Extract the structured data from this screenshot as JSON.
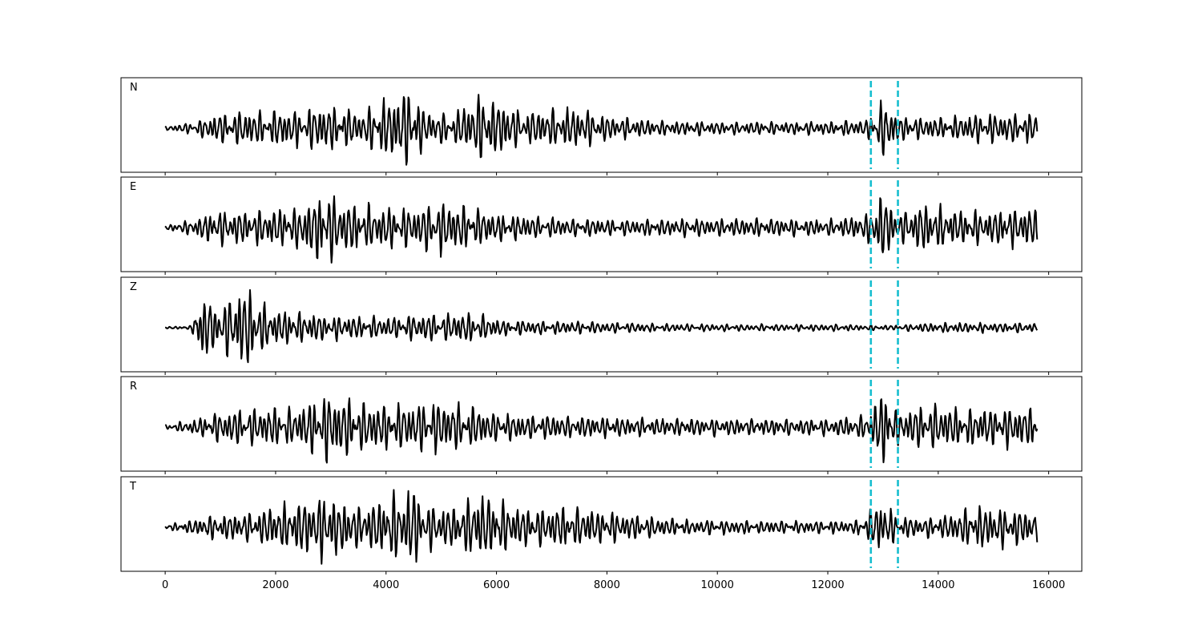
{
  "chart_data": {
    "type": "line",
    "title": "",
    "xlabel": "",
    "ylabel": "",
    "xlim": [
      -800,
      16600
    ],
    "xticks": [
      0,
      2000,
      4000,
      6000,
      8000,
      10000,
      12000,
      14000,
      16000
    ],
    "xtick_labels": [
      "0",
      "2000",
      "4000",
      "6000",
      "8000",
      "10000",
      "12000",
      "14000",
      "16000"
    ],
    "sample_range": [
      0,
      15800
    ],
    "markers": {
      "color": "#17becf",
      "style": "dashed",
      "x": [
        12780,
        13270
      ]
    },
    "trace_color": "#000000",
    "grid": false,
    "legend": "none",
    "panels": [
      {
        "label": "N",
        "envelope": [
          [
            0,
            0.05
          ],
          [
            500,
            0.15
          ],
          [
            900,
            0.35
          ],
          [
            1500,
            0.42
          ],
          [
            2400,
            0.45
          ],
          [
            2900,
            0.6
          ],
          [
            3500,
            0.42
          ],
          [
            4500,
            1.0
          ],
          [
            4700,
            0.45
          ],
          [
            5200,
            0.35
          ],
          [
            5700,
            0.85
          ],
          [
            6500,
            0.4
          ],
          [
            7400,
            0.5
          ],
          [
            8000,
            0.3
          ],
          [
            9000,
            0.18
          ],
          [
            10500,
            0.15
          ],
          [
            12000,
            0.16
          ],
          [
            12700,
            0.22
          ],
          [
            13000,
            0.7
          ],
          [
            13300,
            0.3
          ],
          [
            14000,
            0.25
          ],
          [
            14800,
            0.35
          ],
          [
            15800,
            0.35
          ]
        ],
        "seed": 11,
        "period": 90
      },
      {
        "label": "E",
        "envelope": [
          [
            0,
            0.05
          ],
          [
            500,
            0.2
          ],
          [
            900,
            0.4
          ],
          [
            1500,
            0.4
          ],
          [
            2400,
            0.5
          ],
          [
            2900,
            0.9
          ],
          [
            3500,
            0.55
          ],
          [
            4500,
            0.5
          ],
          [
            5000,
            0.65
          ],
          [
            6000,
            0.35
          ],
          [
            6800,
            0.25
          ],
          [
            8000,
            0.2
          ],
          [
            10000,
            0.22
          ],
          [
            12000,
            0.2
          ],
          [
            12700,
            0.3
          ],
          [
            12950,
            0.85
          ],
          [
            13300,
            0.35
          ],
          [
            13700,
            0.6
          ],
          [
            14500,
            0.4
          ],
          [
            15800,
            0.5
          ]
        ],
        "seed": 23,
        "period": 90
      },
      {
        "label": "Z",
        "envelope": [
          [
            0,
            0.02
          ],
          [
            480,
            0.05
          ],
          [
            620,
            0.9
          ],
          [
            900,
            0.55
          ],
          [
            1500,
            1.0
          ],
          [
            1900,
            0.45
          ],
          [
            2400,
            0.4
          ],
          [
            3000,
            0.3
          ],
          [
            4000,
            0.25
          ],
          [
            4800,
            0.35
          ],
          [
            5600,
            0.35
          ],
          [
            6200,
            0.18
          ],
          [
            7500,
            0.15
          ],
          [
            9000,
            0.1
          ],
          [
            10500,
            0.08
          ],
          [
            12000,
            0.08
          ],
          [
            13200,
            0.06
          ],
          [
            13900,
            0.12
          ],
          [
            15000,
            0.12
          ],
          [
            15800,
            0.12
          ]
        ],
        "seed": 37,
        "period": 90
      },
      {
        "label": "R",
        "envelope": [
          [
            0,
            0.05
          ],
          [
            500,
            0.18
          ],
          [
            900,
            0.35
          ],
          [
            1500,
            0.45
          ],
          [
            2400,
            0.45
          ],
          [
            2950,
            0.9
          ],
          [
            3500,
            0.6
          ],
          [
            4500,
            0.55
          ],
          [
            5000,
            0.65
          ],
          [
            6000,
            0.35
          ],
          [
            7000,
            0.28
          ],
          [
            8500,
            0.22
          ],
          [
            10500,
            0.2
          ],
          [
            12000,
            0.2
          ],
          [
            12700,
            0.3
          ],
          [
            13000,
            0.95
          ],
          [
            13300,
            0.35
          ],
          [
            13700,
            0.55
          ],
          [
            14600,
            0.45
          ],
          [
            15800,
            0.5
          ]
        ],
        "seed": 53,
        "period": 90
      },
      {
        "label": "T",
        "envelope": [
          [
            0,
            0.05
          ],
          [
            500,
            0.18
          ],
          [
            900,
            0.3
          ],
          [
            1500,
            0.35
          ],
          [
            2600,
            0.7
          ],
          [
            2900,
            0.8
          ],
          [
            3500,
            0.5
          ],
          [
            4500,
            1.0
          ],
          [
            4700,
            0.6
          ],
          [
            5200,
            0.5
          ],
          [
            5700,
            0.85
          ],
          [
            6500,
            0.45
          ],
          [
            7400,
            0.5
          ],
          [
            8500,
            0.3
          ],
          [
            9500,
            0.18
          ],
          [
            11000,
            0.15
          ],
          [
            12500,
            0.15
          ],
          [
            12950,
            0.65
          ],
          [
            13300,
            0.25
          ],
          [
            14000,
            0.25
          ],
          [
            14700,
            0.55
          ],
          [
            15800,
            0.4
          ]
        ],
        "seed": 71,
        "period": 90
      }
    ]
  }
}
